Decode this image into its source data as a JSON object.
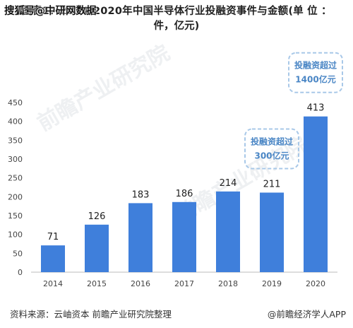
{
  "overlay_text": "搜狐号@中研网数据",
  "title_prefix": "图表1：",
  "title_main": "2014-2020年中国半导体行业投融资事件与金额(单 位 ：",
  "title_cont": "件，亿元)",
  "watermark": "前瞻产业研究院",
  "annotations": [
    {
      "line1": "投融资超过",
      "line2": "300亿元",
      "x": 2019
    },
    {
      "line1": "投融资超过",
      "line2": "1400亿元",
      "x": 2020
    }
  ],
  "footer_source": "资料来源：云岫资本 前瞻产业研究院整理",
  "footer_app": "@前瞻经济学人APP",
  "colors": {
    "bar": "#3f7fdb",
    "axis": "#bbbbbb",
    "annotation_border": "#a8c8e8",
    "annotation_text": "#4a86c5"
  },
  "chart_data": {
    "type": "bar",
    "categories": [
      "2014",
      "2015",
      "2016",
      "2017",
      "2018",
      "2019",
      "2020"
    ],
    "values": [
      71,
      126,
      183,
      186,
      214,
      211,
      413
    ],
    "ylim": [
      0,
      450
    ],
    "yticks": [
      0,
      50,
      100,
      150,
      200,
      250,
      300,
      350,
      400,
      450
    ],
    "xlabel": "",
    "ylabel": "",
    "grid": false,
    "data_labels": true
  }
}
